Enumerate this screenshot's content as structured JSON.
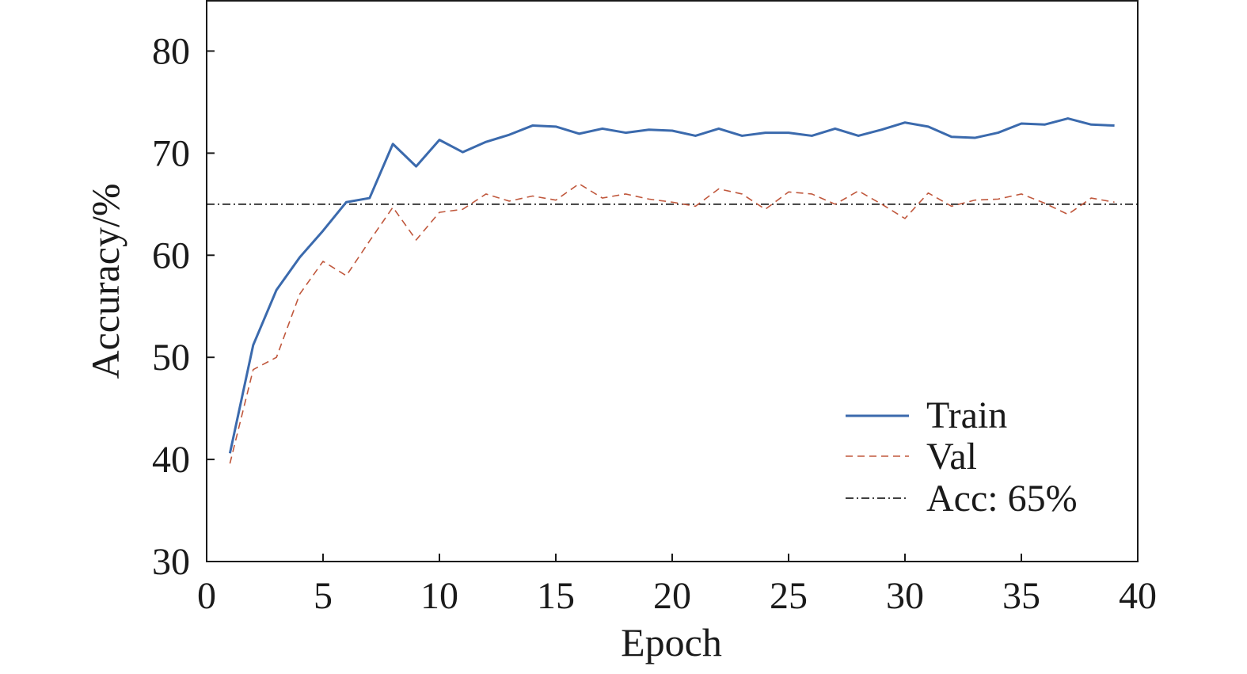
{
  "chart_data": {
    "type": "line",
    "xlabel": "Epoch",
    "ylabel": "Accuracy/%",
    "xlim": [
      0,
      40
    ],
    "ylim": [
      30,
      85
    ],
    "xticks": [
      0,
      5,
      10,
      15,
      20,
      25,
      30,
      35,
      40
    ],
    "yticks": [
      30,
      40,
      50,
      60,
      70,
      80
    ],
    "xtick_labels": [
      "0",
      "5",
      "10",
      "15",
      "20",
      "25",
      "30",
      "35",
      "40"
    ],
    "ytick_labels": [
      "30",
      "40",
      "50",
      "60",
      "70",
      "80"
    ],
    "grid": false,
    "legend_position": "bottom-right",
    "x": [
      1,
      2,
      3,
      4,
      5,
      6,
      7,
      8,
      9,
      10,
      11,
      12,
      13,
      14,
      15,
      16,
      17,
      18,
      19,
      20,
      21,
      22,
      23,
      24,
      25,
      26,
      27,
      28,
      29,
      30,
      31,
      32,
      33,
      34,
      35,
      36,
      37,
      38,
      39
    ],
    "series": [
      {
        "name": "Train",
        "color": "#3b6aad",
        "style": "solid",
        "values": [
          40.6,
          51.2,
          56.6,
          59.8,
          62.4,
          65.2,
          65.6,
          70.9,
          68.7,
          71.3,
          70.1,
          71.1,
          71.8,
          72.7,
          72.6,
          71.9,
          72.4,
          72.0,
          72.3,
          72.2,
          71.7,
          72.4,
          71.7,
          72.0,
          72.0,
          71.7,
          72.4,
          71.7,
          72.3,
          73.0,
          72.6,
          71.6,
          71.5,
          72.0,
          72.9,
          72.8,
          73.4,
          72.8,
          72.7
        ]
      },
      {
        "name": "Val",
        "color": "#c0583d",
        "style": "dashed",
        "values": [
          39.6,
          48.8,
          50.0,
          56.2,
          59.4,
          58.0,
          61.4,
          64.7,
          61.5,
          64.2,
          64.5,
          66.0,
          65.3,
          65.8,
          65.4,
          67.0,
          65.6,
          66.0,
          65.5,
          65.2,
          64.8,
          66.5,
          66.0,
          64.5,
          66.2,
          66.0,
          65.0,
          66.3,
          65.0,
          63.6,
          66.1,
          64.8,
          65.4,
          65.5,
          66.0,
          65.1,
          64.0,
          65.6,
          65.2
        ]
      }
    ],
    "reference_line": {
      "name": "Acc: 65%",
      "value": 65,
      "color": "#000000",
      "style": "dash-dot"
    }
  }
}
